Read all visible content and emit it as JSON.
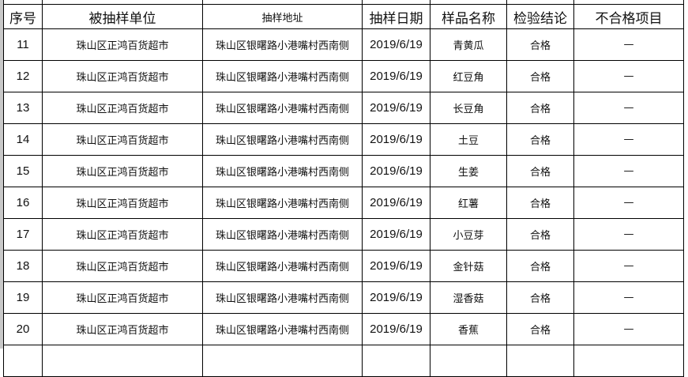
{
  "header": {
    "no": "序号",
    "unit": "被抽样单位",
    "address": "抽样地址",
    "date": "抽样日期",
    "sample": "样品名称",
    "result": "检验结论",
    "failed_items": "不合格项目"
  },
  "rows": [
    {
      "no": "11",
      "unit": "珠山区正鸿百货超市",
      "address": "珠山区银曙路小港嘴村西南侧",
      "date": "2019/6/19",
      "sample": "青黄瓜",
      "result": "合格",
      "failed": "—"
    },
    {
      "no": "12",
      "unit": "珠山区正鸿百货超市",
      "address": "珠山区银曙路小港嘴村西南侧",
      "date": "2019/6/19",
      "sample": "红豆角",
      "result": "合格",
      "failed": "—"
    },
    {
      "no": "13",
      "unit": "珠山区正鸿百货超市",
      "address": "珠山区银曙路小港嘴村西南侧",
      "date": "2019/6/19",
      "sample": "长豆角",
      "result": "合格",
      "failed": "—"
    },
    {
      "no": "14",
      "unit": "珠山区正鸿百货超市",
      "address": "珠山区银曙路小港嘴村西南侧",
      "date": "2019/6/19",
      "sample": "土豆",
      "result": "合格",
      "failed": "—"
    },
    {
      "no": "15",
      "unit": "珠山区正鸿百货超市",
      "address": "珠山区银曙路小港嘴村西南侧",
      "date": "2019/6/19",
      "sample": "生姜",
      "result": "合格",
      "failed": "—"
    },
    {
      "no": "16",
      "unit": "珠山区正鸿百货超市",
      "address": "珠山区银曙路小港嘴村西南侧",
      "date": "2019/6/19",
      "sample": "红薯",
      "result": "合格",
      "failed": "—"
    },
    {
      "no": "17",
      "unit": "珠山区正鸿百货超市",
      "address": "珠山区银曙路小港嘴村西南侧",
      "date": "2019/6/19",
      "sample": "小豆芽",
      "result": "合格",
      "failed": "—"
    },
    {
      "no": "18",
      "unit": "珠山区正鸿百货超市",
      "address": "珠山区银曙路小港嘴村西南侧",
      "date": "2019/6/19",
      "sample": "金针菇",
      "result": "合格",
      "failed": "—"
    },
    {
      "no": "19",
      "unit": "珠山区正鸿百货超市",
      "address": "珠山区银曙路小港嘴村西南侧",
      "date": "2019/6/19",
      "sample": "湿香菇",
      "result": "合格",
      "failed": "—"
    },
    {
      "no": "20",
      "unit": "珠山区正鸿百货超市",
      "address": "珠山区银曙路小港嘴村西南侧",
      "date": "2019/6/19",
      "sample": "香蕉",
      "result": "合格",
      "failed": "—"
    }
  ]
}
